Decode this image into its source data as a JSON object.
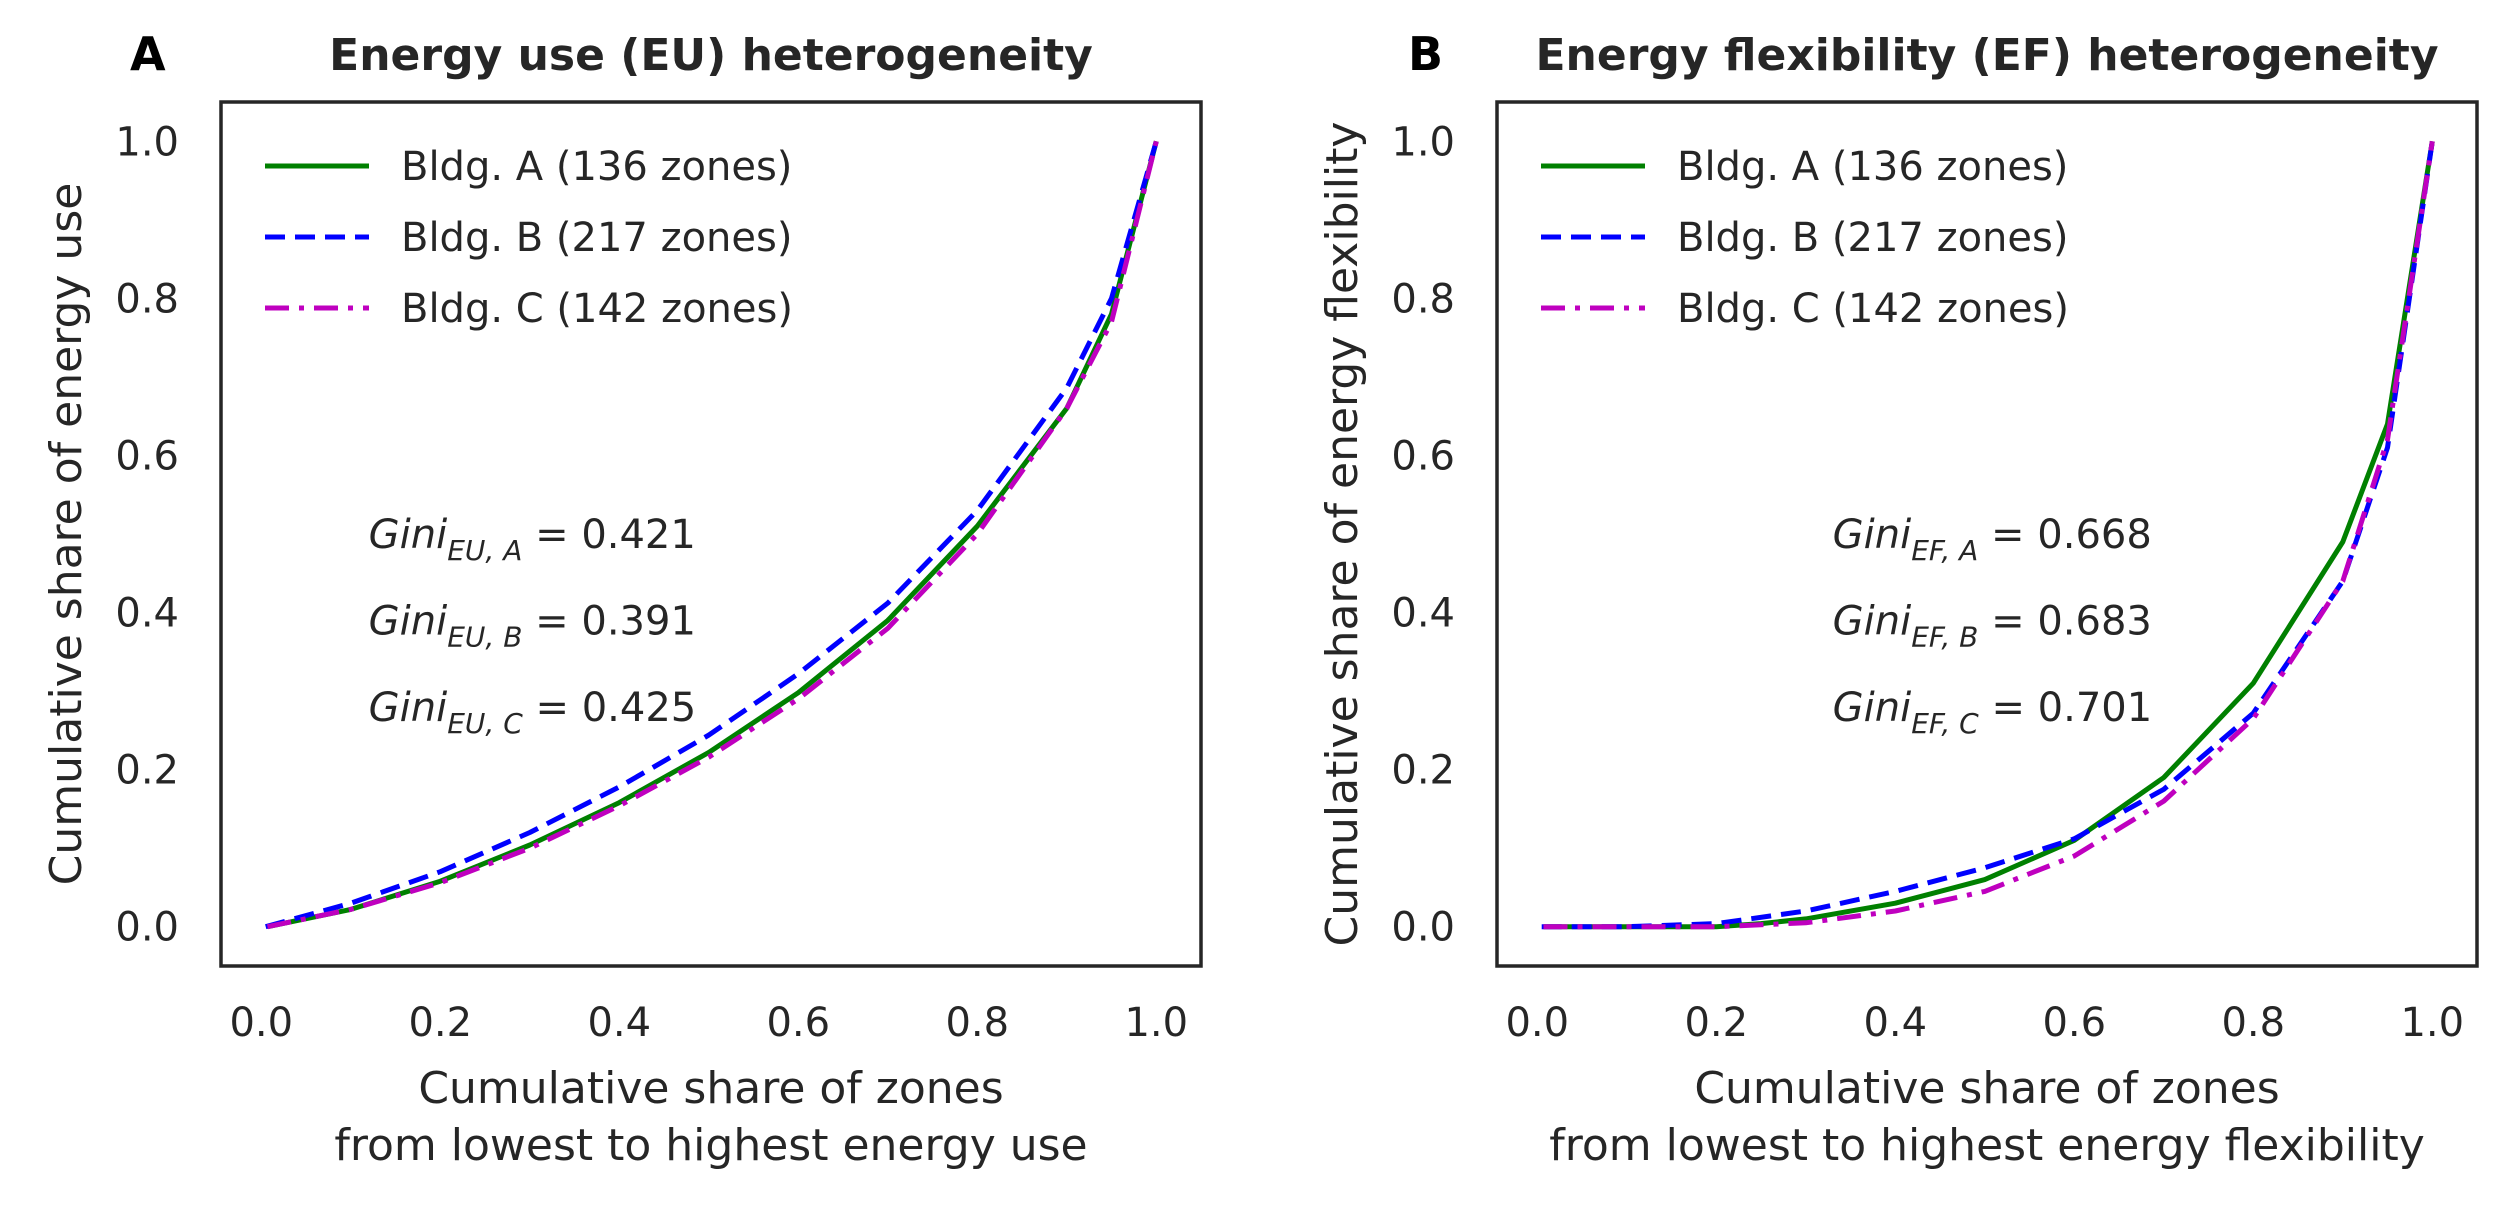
{
  "chart_data": [
    {
      "type": "line",
      "panel_label": "A",
      "title": "Energy use (EU) heterogeneity",
      "xlabel": [
        "Cumulative share of zones",
        "from lowest to highest energy use"
      ],
      "ylabel": "Cumulative share of energy use",
      "xlim": [
        -0.045,
        1.05
      ],
      "ylim": [
        -0.05,
        1.05
      ],
      "xticks": [
        "0.0",
        "0.2",
        "0.4",
        "0.6",
        "0.8",
        "1.0"
      ],
      "yticks": [
        "0.0",
        "0.2",
        "0.4",
        "0.6",
        "0.8",
        "1.0"
      ],
      "grid": false,
      "legend_position": "upper-left",
      "series": [
        {
          "name": "Bldg. A (136 zones)",
          "color": "#008000",
          "dash": "solid",
          "x": [
            0.007,
            0.1,
            0.2,
            0.3,
            0.4,
            0.5,
            0.6,
            0.7,
            0.8,
            0.9,
            0.95,
            1.0
          ],
          "y": [
            0.0,
            0.022,
            0.058,
            0.104,
            0.158,
            0.222,
            0.298,
            0.39,
            0.51,
            0.66,
            0.78,
            1.0
          ]
        },
        {
          "name": "Bldg. B (217 zones)",
          "color": "#0000ff",
          "dash": "dashed",
          "x": [
            0.005,
            0.1,
            0.2,
            0.3,
            0.4,
            0.5,
            0.6,
            0.7,
            0.8,
            0.9,
            0.95,
            1.0
          ],
          "y": [
            0.0,
            0.03,
            0.07,
            0.12,
            0.178,
            0.244,
            0.322,
            0.412,
            0.53,
            0.686,
            0.8,
            1.0
          ]
        },
        {
          "name": "Bldg. C (142 zones)",
          "color": "#bf00bf",
          "dash": "dashdot",
          "x": [
            0.007,
            0.1,
            0.2,
            0.3,
            0.4,
            0.5,
            0.6,
            0.7,
            0.8,
            0.9,
            0.95,
            1.0
          ],
          "y": [
            0.0,
            0.022,
            0.056,
            0.1,
            0.154,
            0.216,
            0.29,
            0.38,
            0.5,
            0.66,
            0.77,
            1.0
          ]
        }
      ],
      "annotations": [
        {
          "base": "Gini",
          "sub": "EU, A",
          "value": "= 0.421",
          "x": 0.12,
          "y": 0.5
        },
        {
          "base": "Gini",
          "sub": "EU, B",
          "value": "= 0.391",
          "x": 0.12,
          "y": 0.39
        },
        {
          "base": "Gini",
          "sub": "EU, C",
          "value": "= 0.425",
          "x": 0.12,
          "y": 0.28
        }
      ]
    },
    {
      "type": "line",
      "panel_label": "B",
      "title": "Energy flexibility (EF) heterogeneity",
      "xlabel": [
        "Cumulative share of zones",
        "from lowest to highest energy flexibility"
      ],
      "ylabel": "Cumulative share of energy flexibility",
      "xlim": [
        -0.045,
        1.05
      ],
      "ylim": [
        -0.05,
        1.05
      ],
      "xticks": [
        "0.0",
        "0.2",
        "0.4",
        "0.6",
        "0.8",
        "1.0"
      ],
      "yticks": [
        "0.0",
        "0.2",
        "0.4",
        "0.6",
        "0.8",
        "1.0"
      ],
      "grid": false,
      "legend_position": "upper-left",
      "series": [
        {
          "name": "Bldg. A (136 zones)",
          "color": "#008000",
          "dash": "solid",
          "x": [
            0.007,
            0.1,
            0.2,
            0.25,
            0.3,
            0.4,
            0.5,
            0.6,
            0.7,
            0.8,
            0.9,
            0.95,
            1.0
          ],
          "y": [
            0.0,
            0.0,
            0.0,
            0.004,
            0.01,
            0.03,
            0.06,
            0.11,
            0.19,
            0.31,
            0.49,
            0.64,
            1.0
          ]
        },
        {
          "name": "Bldg. B (217 zones)",
          "color": "#0000ff",
          "dash": "dashed",
          "x": [
            0.005,
            0.1,
            0.2,
            0.3,
            0.4,
            0.5,
            0.6,
            0.7,
            0.8,
            0.9,
            0.95,
            1.0
          ],
          "y": [
            0.0,
            0.0,
            0.004,
            0.02,
            0.045,
            0.075,
            0.112,
            0.175,
            0.272,
            0.44,
            0.61,
            1.0
          ]
        },
        {
          "name": "Bldg. C (142 zones)",
          "color": "#bf00bf",
          "dash": "dashdot",
          "x": [
            0.007,
            0.1,
            0.2,
            0.3,
            0.4,
            0.5,
            0.6,
            0.7,
            0.8,
            0.9,
            0.95,
            1.0
          ],
          "y": [
            0.0,
            0.0,
            0.0,
            0.005,
            0.02,
            0.045,
            0.09,
            0.16,
            0.265,
            0.44,
            0.62,
            1.0
          ]
        }
      ],
      "annotations": [
        {
          "base": "Gini",
          "sub": "EF, A",
          "value": "= 0.668",
          "x": 0.33,
          "y": 0.5
        },
        {
          "base": "Gini",
          "sub": "EF, B",
          "value": "= 0.683",
          "x": 0.33,
          "y": 0.39
        },
        {
          "base": "Gini",
          "sub": "EF, C",
          "value": "= 0.701",
          "x": 0.33,
          "y": 0.28
        }
      ]
    }
  ]
}
